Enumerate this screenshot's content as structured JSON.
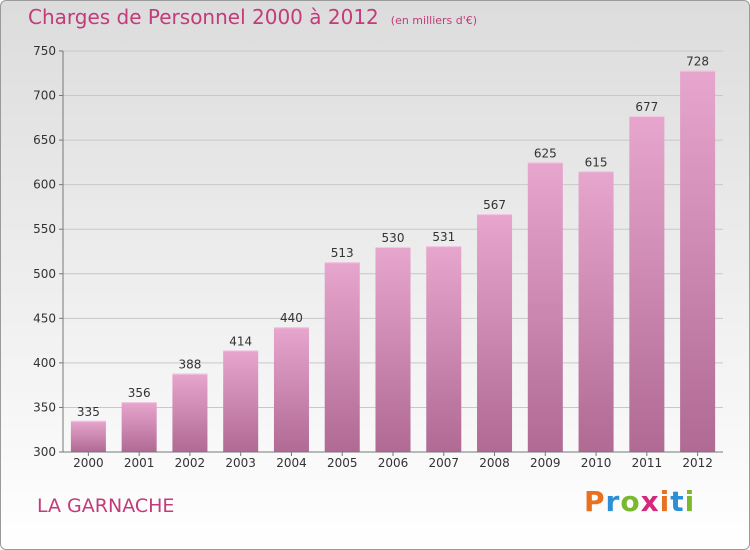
{
  "header": {
    "title": "Charges de Personnel 2000 à 2012",
    "subtitle": "(en milliers d'€)"
  },
  "footer": {
    "city": "LA GARNACHE",
    "brand_letters": [
      "P",
      "r",
      "o",
      "x",
      "i",
      "t",
      "i"
    ],
    "brand_colors": [
      "#e8701e",
      "#2b8fd6",
      "#7ab82f",
      "#d6287a",
      "#e8701e",
      "#2b8fd6",
      "#7ab82f"
    ]
  },
  "chart_data": {
    "type": "bar",
    "categories": [
      "2000",
      "2001",
      "2002",
      "2003",
      "2004",
      "2005",
      "2006",
      "2007",
      "2008",
      "2009",
      "2010",
      "2011",
      "2012"
    ],
    "values": [
      335,
      356,
      388,
      414,
      440,
      513,
      530,
      531,
      567,
      625,
      615,
      677,
      728
    ],
    "data_labels": [
      "335",
      "356",
      "388",
      "414",
      "440",
      "513",
      "530",
      "531",
      "567",
      "625",
      "615",
      "677",
      "728"
    ],
    "yticks": [
      "300",
      "350",
      "400",
      "450",
      "500",
      "550",
      "600",
      "650",
      "700",
      "750"
    ],
    "ylim": [
      300,
      750
    ],
    "grid": true,
    "bar_color": "#d67fb0"
  }
}
